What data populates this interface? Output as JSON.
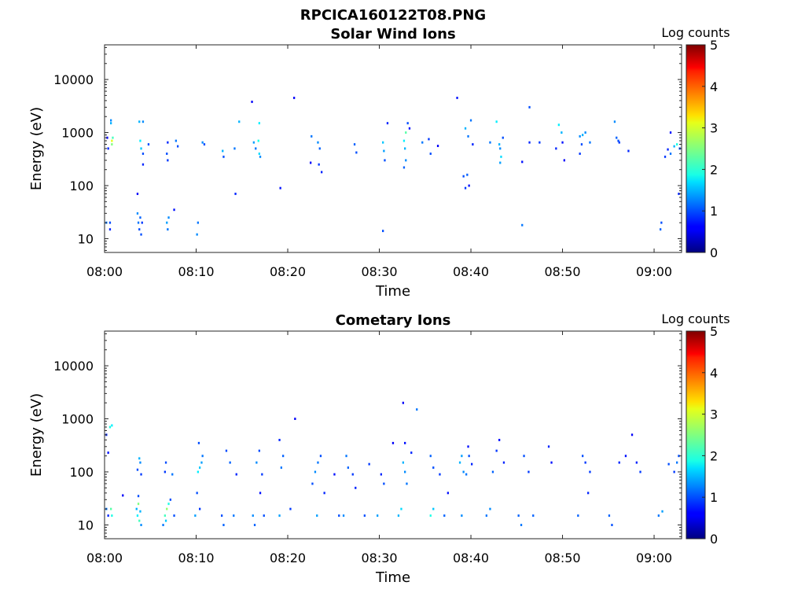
{
  "figure_title": "RPCICA160122T08.PNG",
  "chart_data": [
    {
      "type": "heatmap",
      "title": "Solar Wind Ions",
      "xlabel": "Time",
      "ylabel": "Energy (eV)",
      "colorbar_label": "Log counts",
      "x_ticks": [
        "08:00",
        "08:10",
        "08:20",
        "08:30",
        "08:40",
        "08:50",
        "09:00"
      ],
      "x_range_minutes": [
        0,
        63
      ],
      "y_scale": "log",
      "y_ticks": [
        "10",
        "100",
        "1000",
        "10000"
      ],
      "y_range": [
        5.5,
        45000
      ],
      "colorbar_range": [
        0,
        5
      ],
      "colorbar_ticks": [
        "0",
        "1",
        "2",
        "3",
        "4",
        "5"
      ],
      "colormap": "jet",
      "grid": false,
      "cells": [
        [
          0.2,
          20,
          1.2
        ],
        [
          0.6,
          15,
          0.8
        ],
        [
          0.6,
          20,
          1.0
        ],
        [
          0.7,
          1500,
          1.5
        ],
        [
          0.7,
          1700,
          1.3
        ],
        [
          0.8,
          600,
          2.5
        ],
        [
          0.8,
          700,
          3.0
        ],
        [
          0.9,
          800,
          2.2
        ],
        [
          0.4,
          500,
          0.8
        ],
        [
          0.3,
          800,
          0.6
        ],
        [
          3.6,
          30,
          1.3
        ],
        [
          3.7,
          20,
          1.2
        ],
        [
          3.8,
          15,
          1.0
        ],
        [
          3.9,
          25,
          1.1
        ],
        [
          4.0,
          12,
          1.0
        ],
        [
          4.1,
          20,
          0.9
        ],
        [
          3.8,
          1600,
          1.5
        ],
        [
          4.2,
          1600,
          1.3
        ],
        [
          3.9,
          700,
          1.8
        ],
        [
          4.0,
          500,
          1.6
        ],
        [
          4.2,
          400,
          1.0
        ],
        [
          4.2,
          250,
          0.8
        ],
        [
          3.6,
          70,
          0.6
        ],
        [
          4.8,
          600,
          1.0
        ],
        [
          6.8,
          20,
          1.4
        ],
        [
          6.9,
          15,
          1.2
        ],
        [
          7.0,
          25,
          1.3
        ],
        [
          6.8,
          400,
          1.0
        ],
        [
          6.9,
          300,
          0.9
        ],
        [
          6.9,
          650,
          0.8
        ],
        [
          7.6,
          35,
          0.7
        ],
        [
          7.8,
          700,
          1.2
        ],
        [
          8.0,
          550,
          1.0
        ],
        [
          10.1,
          12,
          1.3
        ],
        [
          10.2,
          20,
          1.2
        ],
        [
          10.7,
          650,
          1.3
        ],
        [
          10.9,
          600,
          1.0
        ],
        [
          12.9,
          450,
          1.5
        ],
        [
          13.0,
          350,
          1.0
        ],
        [
          14.2,
          500,
          1.2
        ],
        [
          14.3,
          70,
          0.8
        ],
        [
          14.7,
          1600,
          1.5
        ],
        [
          16.3,
          650,
          1.4
        ],
        [
          16.5,
          500,
          1.2
        ],
        [
          16.8,
          700,
          2.0
        ],
        [
          16.9,
          400,
          1.7
        ],
        [
          17.0,
          350,
          1.3
        ],
        [
          16.9,
          1500,
          1.8
        ],
        [
          16.1,
          3800,
          0.6
        ],
        [
          19.2,
          90,
          0.7
        ],
        [
          20.7,
          4500,
          0.6
        ],
        [
          22.6,
          850,
          1.2
        ],
        [
          23.3,
          650,
          1.3
        ],
        [
          23.5,
          500,
          1.1
        ],
        [
          23.4,
          250,
          0.9
        ],
        [
          23.7,
          180,
          0.8
        ],
        [
          22.5,
          270,
          0.6
        ],
        [
          27.3,
          600,
          1.1
        ],
        [
          27.5,
          420,
          1.0
        ],
        [
          30.4,
          650,
          1.6
        ],
        [
          30.5,
          450,
          1.4
        ],
        [
          30.6,
          300,
          1.0
        ],
        [
          30.4,
          14,
          1.0
        ],
        [
          30.9,
          1500,
          0.8
        ],
        [
          32.7,
          700,
          1.8
        ],
        [
          32.8,
          500,
          1.5
        ],
        [
          32.9,
          300,
          1.3
        ],
        [
          32.7,
          220,
          1.1
        ],
        [
          32.9,
          1000,
          2.3
        ],
        [
          33.1,
          1500,
          1.0
        ],
        [
          33.3,
          1200,
          0.7
        ],
        [
          34.7,
          650,
          1.2
        ],
        [
          35.4,
          750,
          0.9
        ],
        [
          35.6,
          400,
          1.0
        ],
        [
          36.4,
          560,
          0.6
        ],
        [
          38.5,
          4500,
          0.7
        ],
        [
          39.4,
          1200,
          1.5
        ],
        [
          39.7,
          850,
          1.2
        ],
        [
          40.0,
          1700,
          1.2
        ],
        [
          39.6,
          160,
          1.1
        ],
        [
          39.2,
          150,
          1.0
        ],
        [
          39.4,
          90,
          0.9
        ],
        [
          39.8,
          100,
          0.7
        ],
        [
          40.2,
          600,
          0.8
        ],
        [
          42.1,
          650,
          1.2
        ],
        [
          42.8,
          1600,
          1.8
        ],
        [
          43.1,
          600,
          1.5
        ],
        [
          43.2,
          500,
          1.3
        ],
        [
          43.3,
          350,
          1.7
        ],
        [
          43.2,
          270,
          1.4
        ],
        [
          43.5,
          800,
          1.0
        ],
        [
          45.6,
          18,
          1.2
        ],
        [
          45.6,
          280,
          0.7
        ],
        [
          46.4,
          650,
          0.8
        ],
        [
          46.4,
          3000,
          1.0
        ],
        [
          47.5,
          650,
          0.9
        ],
        [
          49.6,
          1400,
          1.8
        ],
        [
          49.9,
          1000,
          1.5
        ],
        [
          49.3,
          500,
          0.8
        ],
        [
          50.2,
          300,
          0.6
        ],
        [
          50.0,
          650,
          0.7
        ],
        [
          51.9,
          850,
          1.3
        ],
        [
          52.2,
          900,
          1.5
        ],
        [
          52.5,
          1000,
          1.3
        ],
        [
          52.1,
          600,
          1.0
        ],
        [
          51.9,
          400,
          0.9
        ],
        [
          53.0,
          650,
          1.2
        ],
        [
          55.7,
          1600,
          1.3
        ],
        [
          55.9,
          800,
          1.1
        ],
        [
          56.1,
          700,
          1.0
        ],
        [
          56.2,
          650,
          0.9
        ],
        [
          57.2,
          450,
          0.8
        ],
        [
          60.7,
          15,
          1.1
        ],
        [
          60.8,
          20,
          1.0
        ],
        [
          61.8,
          1000,
          0.7
        ],
        [
          61.8,
          400,
          1.2
        ],
        [
          61.2,
          350,
          0.9
        ],
        [
          61.5,
          480,
          0.8
        ],
        [
          62.2,
          550,
          1.5
        ],
        [
          62.5,
          600,
          2.0
        ],
        [
          62.8,
          500,
          1.0
        ],
        [
          62.7,
          70,
          0.8
        ]
      ]
    },
    {
      "type": "heatmap",
      "title": "Cometary Ions",
      "xlabel": "Time",
      "ylabel": "Energy (eV)",
      "colorbar_label": "Log counts",
      "x_ticks": [
        "08:00",
        "08:10",
        "08:20",
        "08:30",
        "08:40",
        "08:50",
        "09:00"
      ],
      "x_range_minutes": [
        0,
        63
      ],
      "y_scale": "log",
      "y_ticks": [
        "10",
        "100",
        "1000",
        "10000"
      ],
      "y_range": [
        5.5,
        45000
      ],
      "colorbar_range": [
        0,
        5
      ],
      "colorbar_ticks": [
        "0",
        "1",
        "2",
        "3",
        "4",
        "5"
      ],
      "colormap": "jet",
      "grid": false,
      "cells": [
        [
          0.2,
          20,
          1.2
        ],
        [
          0.4,
          15,
          0.8
        ],
        [
          0.7,
          20,
          2.3
        ],
        [
          0.8,
          15,
          2.0
        ],
        [
          0.6,
          700,
          2.0
        ],
        [
          0.8,
          750,
          1.8
        ],
        [
          0.2,
          500,
          0.8
        ],
        [
          0.4,
          230,
          0.7
        ],
        [
          3.5,
          20,
          1.5
        ],
        [
          3.6,
          15,
          1.8
        ],
        [
          3.7,
          25,
          2.5
        ],
        [
          3.8,
          12,
          2.2
        ],
        [
          3.9,
          18,
          1.5
        ],
        [
          4.0,
          10,
          1.3
        ],
        [
          3.7,
          35,
          1.0
        ],
        [
          3.9,
          150,
          1.3
        ],
        [
          3.6,
          110,
          1.0
        ],
        [
          4.0,
          90,
          0.9
        ],
        [
          3.8,
          180,
          1.5
        ],
        [
          2.0,
          36,
          0.6
        ],
        [
          6.4,
          10,
          1.2
        ],
        [
          6.6,
          15,
          2.2
        ],
        [
          6.8,
          20,
          2.6
        ],
        [
          7.0,
          25,
          2.0
        ],
        [
          6.7,
          12,
          1.6
        ],
        [
          7.2,
          30,
          1.0
        ],
        [
          6.7,
          150,
          1.0
        ],
        [
          6.6,
          100,
          0.9
        ],
        [
          7.4,
          90,
          1.2
        ],
        [
          7.6,
          15,
          1.0
        ],
        [
          9.9,
          15,
          1.4
        ],
        [
          10.2,
          100,
          1.8
        ],
        [
          10.4,
          120,
          1.6
        ],
        [
          10.6,
          150,
          1.4
        ],
        [
          10.7,
          200,
          1.2
        ],
        [
          10.3,
          350,
          1.0
        ],
        [
          10.1,
          40,
          1.0
        ],
        [
          10.4,
          20,
          0.9
        ],
        [
          12.8,
          15,
          1.0
        ],
        [
          13.0,
          10,
          1.1
        ],
        [
          13.3,
          250,
          1.0
        ],
        [
          13.7,
          150,
          1.1
        ],
        [
          14.1,
          15,
          1.2
        ],
        [
          14.4,
          90,
          0.8
        ],
        [
          16.2,
          15,
          1.3
        ],
        [
          16.4,
          10,
          1.1
        ],
        [
          16.6,
          150,
          1.3
        ],
        [
          16.9,
          250,
          1.0
        ],
        [
          17.2,
          90,
          0.9
        ],
        [
          17.4,
          15,
          1.0
        ],
        [
          17.0,
          40,
          0.7
        ],
        [
          19.1,
          15,
          1.4
        ],
        [
          19.3,
          120,
          1.2
        ],
        [
          19.5,
          200,
          1.1
        ],
        [
          19.1,
          400,
          0.8
        ],
        [
          20.3,
          20,
          0.9
        ],
        [
          20.8,
          1000,
          0.6
        ],
        [
          22.7,
          60,
          1.0
        ],
        [
          23.0,
          100,
          1.3
        ],
        [
          23.3,
          150,
          1.2
        ],
        [
          23.2,
          15,
          1.4
        ],
        [
          23.6,
          200,
          1.0
        ],
        [
          24.0,
          40,
          0.8
        ],
        [
          25.1,
          90,
          0.7
        ],
        [
          25.6,
          15,
          1.0
        ],
        [
          26.1,
          15,
          1.3
        ],
        [
          26.4,
          200,
          1.2
        ],
        [
          26.6,
          120,
          1.1
        ],
        [
          27.1,
          90,
          0.9
        ],
        [
          27.4,
          50,
          0.8
        ],
        [
          28.4,
          15,
          1.0
        ],
        [
          28.9,
          140,
          0.9
        ],
        [
          29.8,
          15,
          1.4
        ],
        [
          30.2,
          90,
          0.8
        ],
        [
          30.5,
          60,
          1.0
        ],
        [
          31.5,
          350,
          0.6
        ],
        [
          32.1,
          15,
          1.5
        ],
        [
          32.4,
          20,
          1.7
        ],
        [
          32.6,
          150,
          1.5
        ],
        [
          32.8,
          100,
          1.3
        ],
        [
          33.0,
          60,
          1.2
        ],
        [
          32.8,
          350,
          0.7
        ],
        [
          32.6,
          2000,
          0.6
        ],
        [
          34.1,
          1500,
          1.2
        ],
        [
          33.5,
          230,
          0.8
        ],
        [
          35.6,
          15,
          2.0
        ],
        [
          35.9,
          20,
          1.6
        ],
        [
          35.6,
          200,
          1.1
        ],
        [
          35.9,
          120,
          1.0
        ],
        [
          36.6,
          90,
          0.9
        ],
        [
          37.1,
          15,
          1.1
        ],
        [
          37.5,
          40,
          0.7
        ],
        [
          38.8,
          150,
          1.5
        ],
        [
          39.0,
          200,
          1.4
        ],
        [
          39.2,
          100,
          1.3
        ],
        [
          39.5,
          90,
          1.2
        ],
        [
          39.8,
          200,
          1.0
        ],
        [
          39.0,
          15,
          1.3
        ],
        [
          40.1,
          140,
          0.8
        ],
        [
          39.7,
          300,
          0.7
        ],
        [
          41.7,
          15,
          1.2
        ],
        [
          42.1,
          20,
          1.3
        ],
        [
          42.4,
          100,
          1.1
        ],
        [
          42.8,
          250,
          0.9
        ],
        [
          43.1,
          400,
          0.7
        ],
        [
          43.6,
          150,
          0.8
        ],
        [
          45.2,
          15,
          1.1
        ],
        [
          45.5,
          10,
          1.2
        ],
        [
          45.8,
          200,
          1.0
        ],
        [
          46.3,
          100,
          0.9
        ],
        [
          46.8,
          15,
          1.1
        ],
        [
          48.5,
          300,
          0.8
        ],
        [
          48.8,
          150,
          0.7
        ],
        [
          51.7,
          15,
          1.1
        ],
        [
          52.2,
          200,
          1.0
        ],
        [
          52.5,
          150,
          0.9
        ],
        [
          52.8,
          40,
          0.8
        ],
        [
          53.0,
          100,
          0.9
        ],
        [
          55.1,
          15,
          1.1
        ],
        [
          55.4,
          10,
          1.0
        ],
        [
          56.2,
          150,
          0.8
        ],
        [
          56.9,
          200,
          0.7
        ],
        [
          57.6,
          500,
          0.6
        ],
        [
          58.1,
          150,
          0.8
        ],
        [
          58.5,
          100,
          0.9
        ],
        [
          60.5,
          15,
          1.2
        ],
        [
          60.9,
          18,
          1.4
        ],
        [
          61.6,
          140,
          1.0
        ],
        [
          62.2,
          100,
          0.9
        ],
        [
          62.5,
          150,
          1.2
        ],
        [
          62.7,
          200,
          1.0
        ]
      ]
    }
  ]
}
